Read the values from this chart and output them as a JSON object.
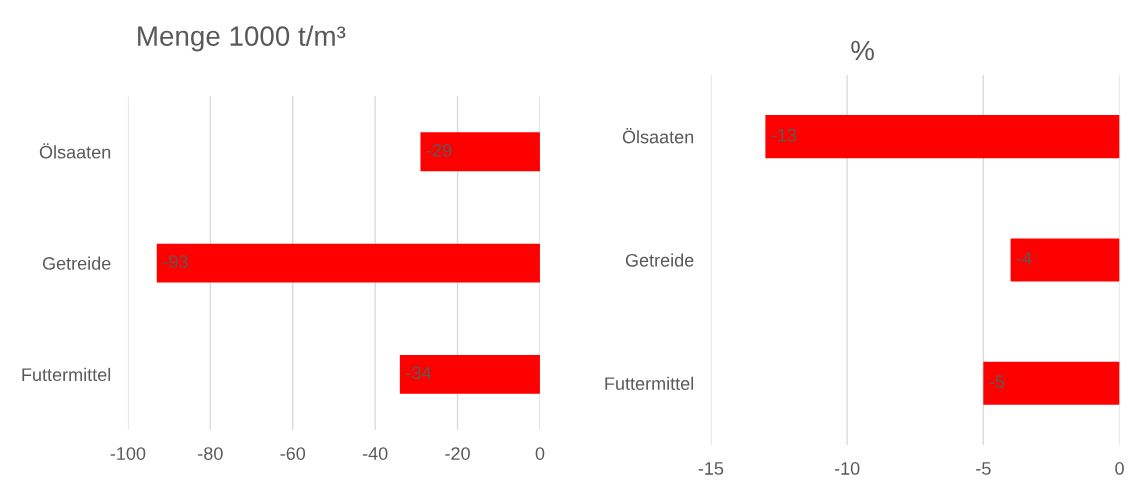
{
  "chart_data": [
    {
      "type": "bar",
      "orientation": "horizontal",
      "title": "Menge 1000 t/m³",
      "categories": [
        "Ölsaaten",
        "Getreide",
        "Futtermittel"
      ],
      "values": [
        -29,
        -93,
        -34
      ],
      "color": "#ff0000",
      "xlim": [
        -100,
        0
      ],
      "xticks": [
        -100,
        -80,
        -60,
        -40,
        -20,
        0
      ],
      "grid": "x",
      "data_labels": true
    },
    {
      "type": "bar",
      "orientation": "horizontal",
      "title": "%",
      "categories": [
        "Ölsaaten",
        "Getreide",
        "Futtermittel"
      ],
      "values": [
        -13,
        -4,
        -5
      ],
      "color": "#ff0000",
      "xlim": [
        -15,
        0
      ],
      "xticks": [
        -15,
        -10,
        -5,
        0
      ],
      "grid": "x",
      "data_labels": true
    }
  ]
}
